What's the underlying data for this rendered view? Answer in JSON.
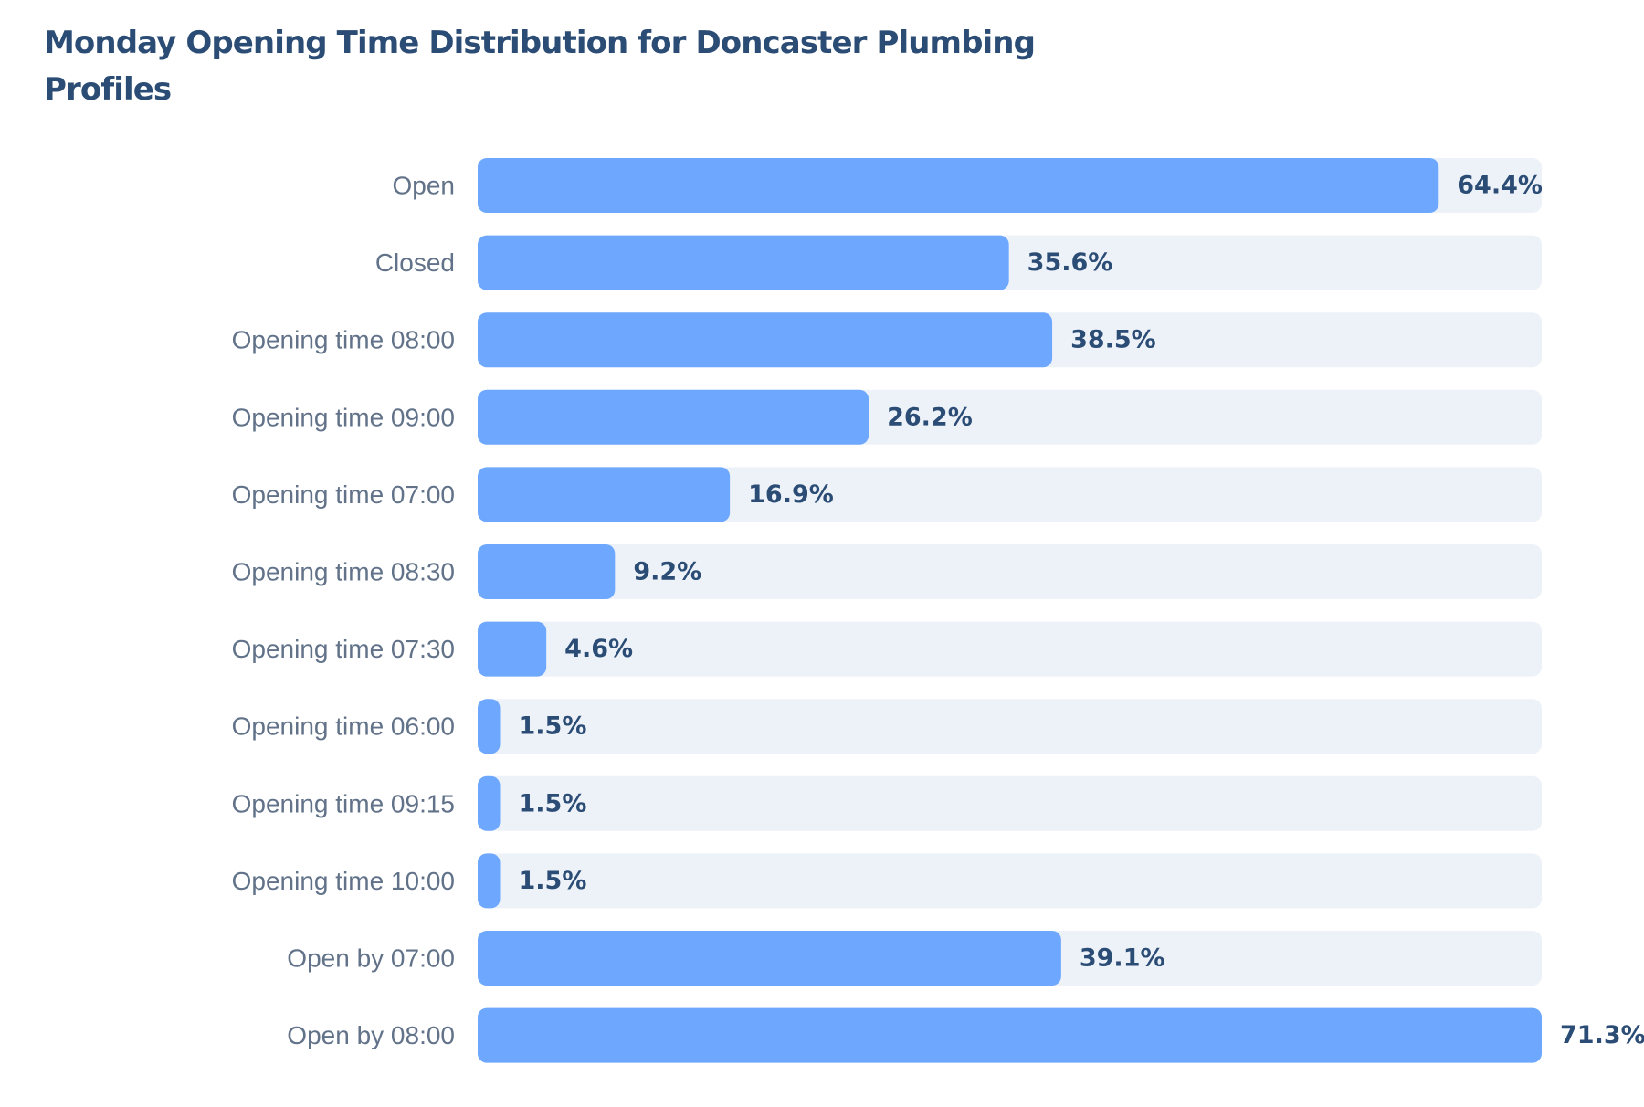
{
  "chart_data": {
    "type": "bar",
    "orientation": "horizontal",
    "title": "Monday Opening Time Distribution for Doncaster Plumbing Profiles",
    "categories": [
      "Open",
      "Closed",
      "Opening time 08:00",
      "Opening time 09:00",
      "Opening time 07:00",
      "Opening time 08:30",
      "Opening time 07:30",
      "Opening time 06:00",
      "Opening time 09:15",
      "Opening time 10:00",
      "Open by 07:00",
      "Open by 08:00"
    ],
    "values": [
      64.4,
      35.6,
      38.5,
      26.2,
      16.9,
      9.2,
      4.6,
      1.5,
      1.5,
      1.5,
      39.1,
      71.3
    ],
    "value_labels": [
      "64.4%",
      "35.6%",
      "38.5%",
      "26.2%",
      "16.9%",
      "9.2%",
      "4.6%",
      "1.5%",
      "1.5%",
      "1.5%",
      "39.1%",
      "71.3%"
    ],
    "xlim": [
      0,
      71.3
    ],
    "grid": false,
    "colors": {
      "bar": "#6ea8fe",
      "track": "#edf2f9",
      "title": "#2b4c74",
      "category_label": "#617289",
      "value_label": "#2b4c74"
    }
  }
}
